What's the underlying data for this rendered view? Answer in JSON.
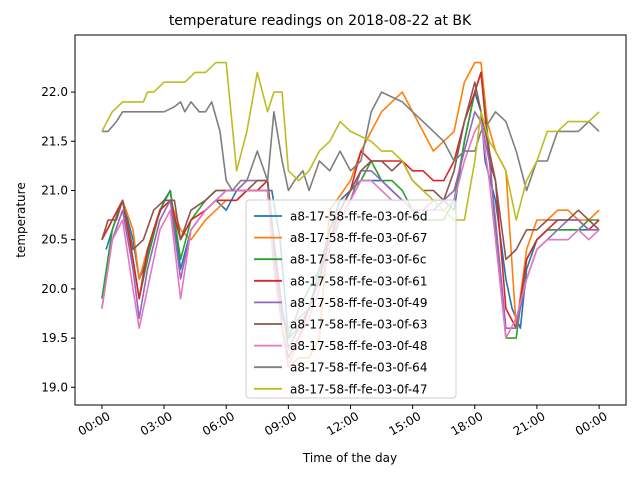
{
  "chart_data": {
    "type": "line",
    "title": "temperature readings on 2018-08-22 at BK",
    "xlabel": "Time of the day",
    "ylabel": "temperature",
    "x_unit": "hours",
    "xlim": [
      -1.3,
      25.3
    ],
    "ylim": [
      18.82,
      22.58
    ],
    "x_ticks": [
      0,
      3,
      6,
      9,
      12,
      15,
      18,
      21,
      24
    ],
    "x_tick_labels": [
      "00:00",
      "03:00",
      "06:00",
      "09:00",
      "12:00",
      "15:00",
      "18:00",
      "21:00",
      "00:00"
    ],
    "y_ticks": [
      19.0,
      19.5,
      20.0,
      20.5,
      21.0,
      21.5,
      22.0
    ],
    "y_tick_labels": [
      "19.0",
      "19.5",
      "20.0",
      "20.5",
      "21.0",
      "21.5",
      "22.0"
    ],
    "grid": false,
    "legend_position": "lower center",
    "series": [
      {
        "name": "a8-17-58-ff-fe-03-0f-6d",
        "color": "#1f77b4",
        "x": [
          0.2,
          0.8,
          1.0,
          1.5,
          1.8,
          2.0,
          2.5,
          3.0,
          3.3,
          3.8,
          4.3,
          5.0,
          5.5,
          6.0,
          6.5,
          7.0,
          7.5,
          8.2,
          8.6,
          9.0,
          9.5,
          10.0,
          10.5,
          11.0,
          11.5,
          12.0,
          12.5,
          13.0,
          13.5,
          14.0,
          14.5,
          15.0,
          15.5,
          16.0,
          16.5,
          17.0,
          17.5,
          18.0,
          18.3,
          18.5,
          19.0,
          19.5,
          19.8,
          20.2,
          20.5,
          21.0,
          21.5,
          22.0,
          22.5,
          23.0,
          23.5,
          24.0
        ],
        "y": [
          20.4,
          20.8,
          20.9,
          20.5,
          20.1,
          20.2,
          20.6,
          20.9,
          21.0,
          20.2,
          20.6,
          20.8,
          20.9,
          20.8,
          21.0,
          21.0,
          21.0,
          21.0,
          20.5,
          19.5,
          19.6,
          19.8,
          20.2,
          20.6,
          20.9,
          21.0,
          21.1,
          21.1,
          21.1,
          21.0,
          20.9,
          20.8,
          20.8,
          20.8,
          20.9,
          20.8,
          21.5,
          22.0,
          21.8,
          21.3,
          20.9,
          20.1,
          19.8,
          19.6,
          20.2,
          20.5,
          20.6,
          20.6,
          20.6,
          20.6,
          20.6,
          20.6
        ]
      },
      {
        "name": "a8-17-58-ff-fe-03-0f-67",
        "color": "#ff7f0e",
        "x": [
          0.0,
          0.5,
          1.0,
          1.5,
          1.8,
          2.2,
          2.8,
          3.3,
          3.8,
          4.3,
          5.0,
          5.5,
          6.0,
          6.5,
          7.0,
          7.5,
          8.0,
          8.3,
          8.7,
          9.0,
          9.5,
          10.0,
          10.5,
          11.0,
          12.0,
          12.5,
          13.0,
          13.5,
          14.0,
          14.5,
          15.0,
          15.5,
          16.0,
          16.5,
          17.0,
          17.5,
          18.0,
          18.3,
          18.6,
          19.0,
          19.5,
          20.0,
          20.5,
          21.0,
          21.5,
          22.0,
          22.5,
          23.0,
          23.5,
          24.0
        ],
        "y": [
          20.5,
          20.7,
          20.9,
          20.6,
          20.1,
          20.4,
          20.8,
          20.9,
          20.6,
          20.5,
          20.7,
          20.8,
          20.9,
          20.9,
          21.0,
          21.0,
          21.0,
          20.3,
          19.6,
          19.2,
          19.3,
          19.3,
          19.5,
          20.8,
          21.1,
          21.4,
          21.6,
          21.8,
          21.9,
          22.0,
          21.8,
          21.6,
          21.4,
          21.5,
          21.6,
          22.1,
          22.3,
          22.3,
          21.7,
          21.4,
          21.2,
          19.6,
          20.4,
          20.7,
          20.7,
          20.8,
          20.8,
          20.7,
          20.7,
          20.8
        ]
      },
      {
        "name": "a8-17-58-ff-fe-03-0f-6c",
        "color": "#2ca02c",
        "x": [
          0.0,
          0.5,
          1.0,
          1.5,
          1.8,
          2.2,
          2.8,
          3.3,
          3.8,
          4.3,
          5.0,
          5.5,
          6.0,
          6.5,
          7.0,
          7.5,
          8.0,
          8.3,
          8.7,
          9.0,
          9.5,
          10.0,
          10.5,
          11.0,
          11.5,
          12.0,
          12.5,
          13.0,
          13.5,
          14.0,
          14.5,
          15.0,
          15.5,
          16.0,
          16.5,
          17.0,
          17.5,
          18.0,
          18.3,
          18.7,
          19.0,
          19.5,
          20.0,
          20.5,
          21.0,
          21.5,
          22.0,
          22.5,
          23.0,
          23.5,
          24.0
        ],
        "y": [
          19.9,
          20.6,
          20.9,
          20.3,
          19.9,
          20.3,
          20.8,
          21.0,
          20.3,
          20.7,
          20.9,
          21.0,
          21.0,
          21.0,
          21.0,
          21.0,
          21.0,
          20.4,
          19.8,
          19.5,
          19.8,
          20.0,
          20.2,
          20.6,
          20.8,
          21.0,
          21.1,
          21.3,
          21.1,
          21.1,
          21.0,
          20.8,
          20.7,
          20.7,
          20.7,
          20.9,
          21.5,
          22.0,
          22.2,
          21.4,
          20.6,
          19.5,
          19.5,
          20.3,
          20.5,
          20.6,
          20.6,
          20.6,
          20.6,
          20.7,
          20.7
        ]
      },
      {
        "name": "a8-17-58-ff-fe-03-0f-61",
        "color": "#d62728",
        "x": [
          0.0,
          0.5,
          1.0,
          1.5,
          1.8,
          2.2,
          2.8,
          3.3,
          3.8,
          4.3,
          5.0,
          5.5,
          6.0,
          6.5,
          7.0,
          7.5,
          8.0,
          8.3,
          8.7,
          9.0,
          9.5,
          10.0,
          10.5,
          11.0,
          11.5,
          12.0,
          12.5,
          13.0,
          13.5,
          14.0,
          14.5,
          15.0,
          15.5,
          16.0,
          16.5,
          17.0,
          17.5,
          18.0,
          18.3,
          18.7,
          19.0,
          19.5,
          20.0,
          20.5,
          21.0,
          21.5,
          22.0,
          22.5,
          23.0,
          23.5,
          24.0
        ],
        "y": [
          20.5,
          20.7,
          20.9,
          20.3,
          19.9,
          20.4,
          20.8,
          20.9,
          20.5,
          20.7,
          20.8,
          20.9,
          20.9,
          20.9,
          21.0,
          21.0,
          21.1,
          20.4,
          19.6,
          19.3,
          19.5,
          19.8,
          20.1,
          20.5,
          20.8,
          21.0,
          21.4,
          21.3,
          21.3,
          21.3,
          21.3,
          21.2,
          21.2,
          21.1,
          21.1,
          21.3,
          21.7,
          22.0,
          22.2,
          21.3,
          21.1,
          19.8,
          19.6,
          20.3,
          20.5,
          20.6,
          20.7,
          20.7,
          20.7,
          20.6,
          20.7
        ]
      },
      {
        "name": "a8-17-58-ff-fe-03-0f-49",
        "color": "#9467bd",
        "x": [
          0.0,
          0.5,
          1.0,
          1.5,
          1.8,
          2.2,
          2.8,
          3.3,
          3.8,
          4.3,
          5.0,
          5.5,
          6.0,
          6.5,
          7.0,
          7.5,
          8.0,
          8.3,
          8.7,
          9.0,
          9.5,
          10.0,
          10.5,
          11.0,
          11.5,
          12.0,
          12.5,
          13.0,
          13.5,
          14.0,
          14.5,
          15.0,
          15.5,
          16.0,
          16.5,
          17.0,
          17.5,
          18.0,
          18.3,
          18.7,
          19.0,
          19.5,
          20.0,
          20.5,
          21.0,
          21.5,
          22.0,
          22.5,
          23.0,
          23.5,
          24.0
        ],
        "y": [
          19.8,
          20.5,
          20.8,
          20.2,
          19.7,
          20.2,
          20.7,
          20.9,
          20.1,
          20.6,
          20.8,
          20.9,
          21.0,
          21.0,
          21.1,
          21.1,
          21.1,
          20.3,
          19.7,
          19.6,
          19.7,
          19.8,
          20.1,
          20.5,
          20.7,
          20.9,
          21.2,
          21.2,
          21.1,
          21.0,
          20.9,
          20.8,
          20.8,
          20.9,
          20.9,
          21.0,
          21.4,
          21.8,
          21.7,
          21.3,
          20.7,
          19.6,
          19.6,
          20.1,
          20.4,
          20.5,
          20.6,
          20.7,
          20.7,
          20.6,
          20.6
        ]
      },
      {
        "name": "a8-17-58-ff-fe-03-0f-63",
        "color": "#8c564b",
        "x": [
          0.0,
          0.3,
          0.7,
          1.0,
          1.5,
          2.0,
          2.5,
          3.0,
          3.5,
          3.8,
          4.3,
          5.0,
          5.5,
          6.0,
          6.5,
          7.0,
          7.5,
          8.0,
          8.3,
          8.7,
          9.0,
          9.5,
          10.0,
          10.5,
          11.0,
          11.5,
          12.0,
          12.5,
          13.0,
          13.5,
          14.0,
          14.5,
          15.0,
          15.5,
          16.0,
          16.5,
          17.0,
          17.5,
          18.0,
          18.3,
          18.7,
          19.0,
          19.5,
          20.0,
          20.5,
          21.0,
          21.5,
          22.0,
          22.5,
          23.0,
          23.5,
          24.0
        ],
        "y": [
          20.5,
          20.7,
          20.7,
          20.9,
          20.4,
          20.5,
          20.8,
          20.9,
          20.9,
          20.5,
          20.8,
          20.9,
          21.0,
          21.0,
          21.0,
          21.0,
          21.1,
          21.1,
          20.5,
          19.8,
          19.4,
          19.6,
          19.8,
          20.1,
          20.6,
          20.8,
          21.0,
          21.2,
          21.3,
          21.3,
          21.2,
          21.3,
          21.1,
          21.0,
          21.0,
          20.9,
          21.2,
          21.7,
          22.1,
          21.8,
          21.4,
          21.1,
          20.3,
          20.4,
          20.6,
          20.6,
          20.7,
          20.7,
          20.7,
          20.8,
          20.7,
          20.6
        ]
      },
      {
        "name": "a8-17-58-ff-fe-03-0f-48",
        "color": "#e377c2",
        "x": [
          0.0,
          0.5,
          1.0,
          1.5,
          1.8,
          2.2,
          2.8,
          3.3,
          3.8,
          4.3,
          5.0,
          5.5,
          6.0,
          6.5,
          7.0,
          7.5,
          8.0,
          8.3,
          8.7,
          9.0,
          9.5,
          10.0,
          10.5,
          11.0,
          11.5,
          12.0,
          12.5,
          13.0,
          13.5,
          14.0,
          14.5,
          15.0,
          15.5,
          16.0,
          16.5,
          17.0,
          17.5,
          18.0,
          18.3,
          18.7,
          19.0,
          19.5,
          20.0,
          20.5,
          21.0,
          21.5,
          22.0,
          22.5,
          23.0,
          23.5,
          24.0
        ],
        "y": [
          19.8,
          20.5,
          20.7,
          20.0,
          19.6,
          20.0,
          20.6,
          20.8,
          19.9,
          20.6,
          20.8,
          20.9,
          21.0,
          21.0,
          21.0,
          21.0,
          21.0,
          20.2,
          19.6,
          19.2,
          19.5,
          19.7,
          20.0,
          20.4,
          20.7,
          20.9,
          21.1,
          21.1,
          21.0,
          20.9,
          20.9,
          20.8,
          20.8,
          20.8,
          20.8,
          20.9,
          21.3,
          21.6,
          21.7,
          21.1,
          20.5,
          19.5,
          19.7,
          20.1,
          20.4,
          20.5,
          20.5,
          20.5,
          20.6,
          20.5,
          20.6
        ]
      },
      {
        "name": "a8-17-58-ff-fe-03-0f-64",
        "color": "#7f7f7f",
        "x": [
          0.0,
          0.3,
          0.7,
          1.0,
          1.5,
          2.0,
          2.5,
          3.0,
          3.5,
          3.8,
          4.0,
          4.3,
          4.7,
          5.0,
          5.3,
          5.7,
          6.0,
          6.3,
          6.7,
          7.0,
          7.5,
          8.0,
          8.3,
          8.7,
          9.0,
          9.3,
          9.7,
          10.0,
          10.5,
          11.0,
          11.5,
          12.0,
          12.5,
          13.0,
          13.5,
          14.0,
          14.5,
          15.0,
          15.5,
          16.0,
          16.5,
          17.0,
          17.5,
          18.0,
          18.3,
          18.7,
          19.0,
          19.5,
          20.0,
          20.5,
          21.0,
          21.5,
          22.0,
          22.5,
          23.0,
          23.5,
          24.0
        ],
        "y": [
          21.6,
          21.6,
          21.7,
          21.8,
          21.8,
          21.8,
          21.8,
          21.8,
          21.85,
          21.9,
          21.8,
          21.9,
          21.8,
          21.8,
          21.9,
          21.6,
          21.1,
          21.0,
          21.1,
          21.1,
          21.4,
          21.1,
          21.8,
          21.3,
          21.0,
          21.1,
          21.2,
          21.0,
          21.3,
          21.2,
          21.4,
          21.2,
          21.3,
          21.8,
          22.0,
          21.95,
          21.9,
          21.8,
          21.7,
          21.6,
          21.5,
          21.3,
          21.4,
          21.4,
          21.6,
          21.7,
          21.8,
          21.7,
          21.4,
          21.0,
          21.3,
          21.3,
          21.6,
          21.6,
          21.6,
          21.7,
          21.6
        ]
      },
      {
        "name": "a8-17-58-ff-fe-03-0f-47",
        "color": "#bcbd22",
        "x": [
          0.0,
          0.5,
          1.0,
          1.5,
          2.0,
          2.2,
          2.5,
          3.0,
          3.5,
          4.0,
          4.5,
          5.0,
          5.5,
          6.0,
          6.5,
          7.0,
          7.5,
          8.0,
          8.3,
          8.7,
          9.0,
          9.5,
          10.0,
          10.5,
          11.0,
          11.5,
          12.0,
          12.5,
          13.0,
          13.5,
          14.0,
          14.5,
          15.0,
          15.5,
          16.0,
          16.5,
          17.0,
          17.5,
          18.0,
          18.3,
          18.7,
          19.0,
          19.5,
          20.0,
          20.5,
          21.0,
          21.5,
          22.0,
          22.5,
          23.0,
          23.5,
          24.0
        ],
        "y": [
          21.6,
          21.8,
          21.9,
          21.9,
          21.9,
          22.0,
          22.0,
          22.1,
          22.1,
          22.1,
          22.2,
          22.2,
          22.3,
          22.3,
          21.2,
          21.6,
          22.2,
          21.8,
          22.0,
          22.0,
          21.2,
          21.1,
          21.2,
          21.4,
          21.5,
          21.7,
          21.6,
          21.55,
          21.5,
          21.4,
          21.4,
          21.3,
          21.1,
          21.0,
          20.9,
          20.8,
          20.7,
          20.7,
          21.3,
          21.8,
          21.5,
          21.4,
          21.2,
          20.7,
          21.1,
          21.3,
          21.6,
          21.6,
          21.7,
          21.7,
          21.7,
          21.8
        ]
      }
    ]
  }
}
